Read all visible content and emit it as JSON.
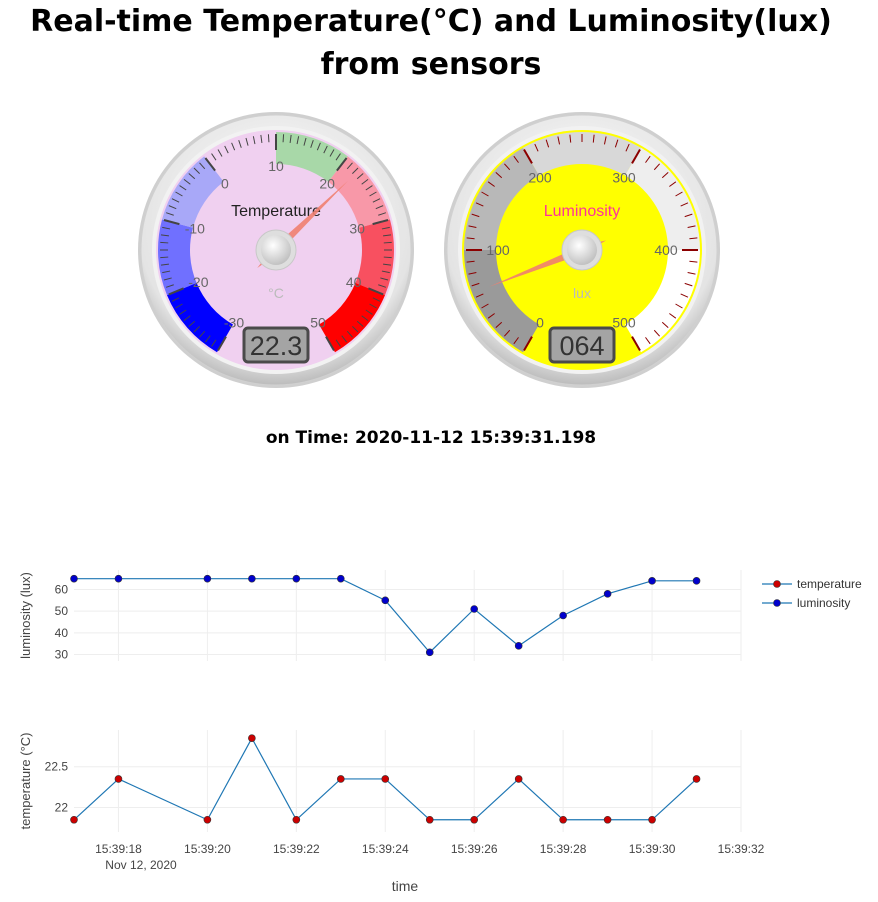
{
  "page": {
    "title": "Real-time Temperature(°C) and Luminosity(lux) from sensors",
    "time_prefix": "on Time:",
    "time_value": "2020-11-12 15:39:31.198"
  },
  "gauges": [
    {
      "id": "temperature",
      "title": "Temperature",
      "units": "°C",
      "min": -30,
      "max": 50,
      "major_ticks": [
        -30,
        -20,
        -10,
        0,
        10,
        20,
        30,
        40,
        50
      ],
      "value": 22.3,
      "display": "22.3",
      "plate_color": "#f0d0f0",
      "needle_color": "#f08070",
      "highlights": [
        {
          "from": -30,
          "to": -20,
          "color": "#0000ff"
        },
        {
          "from": -20,
          "to": -10,
          "color": "#7070ff"
        },
        {
          "from": -10,
          "to": 0,
          "color": "#a8a8f8"
        },
        {
          "from": 10,
          "to": 20,
          "color": "#a8d8a8"
        },
        {
          "from": 20,
          "to": 30,
          "color": "#f898a8"
        },
        {
          "from": 30,
          "to": 40,
          "color": "#f85060"
        },
        {
          "from": 40,
          "to": 50,
          "color": "#ff0000"
        }
      ]
    },
    {
      "id": "luminosity",
      "title": "Luminosity",
      "units": "lux",
      "min": 0,
      "max": 500,
      "major_ticks": [
        0,
        100,
        200,
        300,
        400,
        500
      ],
      "value": 64,
      "display": "064",
      "plate_color": "#ffff00",
      "needle_color": "#f08070",
      "title_color": "#ff3399",
      "highlights": [
        {
          "from": 0,
          "to": 100,
          "color": "#9a9a9a"
        },
        {
          "from": 100,
          "to": 200,
          "color": "#b8b8b8"
        },
        {
          "from": 200,
          "to": 300,
          "color": "#d8d8d8"
        },
        {
          "from": 300,
          "to": 400,
          "color": "#eeeeee"
        },
        {
          "from": 400,
          "to": 500,
          "color": "#ffffff"
        }
      ]
    }
  ],
  "chart_data": {
    "type": "line",
    "x": [
      "15:39:17",
      "15:39:18",
      "15:39:20",
      "15:39:21",
      "15:39:22",
      "15:39:23",
      "15:39:24",
      "15:39:25",
      "15:39:26",
      "15:39:27",
      "15:39:28",
      "15:39:29",
      "15:39:30",
      "15:39:31"
    ],
    "x_tick_labels": [
      "15:39:18",
      "15:39:20",
      "15:39:22",
      "15:39:24",
      "15:39:26",
      "15:39:28",
      "15:39:30",
      "15:39:32"
    ],
    "x_date_label": "Nov 12, 2020",
    "xlabel": "time",
    "xlim": [
      "15:39:17",
      "15:39:32"
    ],
    "series": [
      {
        "name": "luminosity",
        "ylabel": "luminosity (lux)",
        "marker_color": "#0000cc",
        "values": [
          65,
          65,
          65,
          65,
          65,
          65,
          55,
          31,
          51,
          34,
          48,
          58,
          64,
          64
        ],
        "yticks": [
          30,
          40,
          50,
          60
        ],
        "ylim": [
          27,
          69
        ]
      },
      {
        "name": "temperature",
        "ylabel": "temperature (°C)",
        "marker_color": "#cc0000",
        "values": [
          21.85,
          22.35,
          21.85,
          22.85,
          21.85,
          22.35,
          22.35,
          21.85,
          21.85,
          22.35,
          21.85,
          21.85,
          21.85,
          22.35
        ],
        "ytick_labels": [
          "22",
          "22.5"
        ],
        "ytick_values": [
          22,
          22.5
        ],
        "ylim": [
          21.7,
          22.95
        ]
      }
    ],
    "legend": {
      "placement": "top-right",
      "order": [
        "temperature",
        "luminosity"
      ]
    },
    "line_color": "#1f77b4",
    "grid": true
  }
}
